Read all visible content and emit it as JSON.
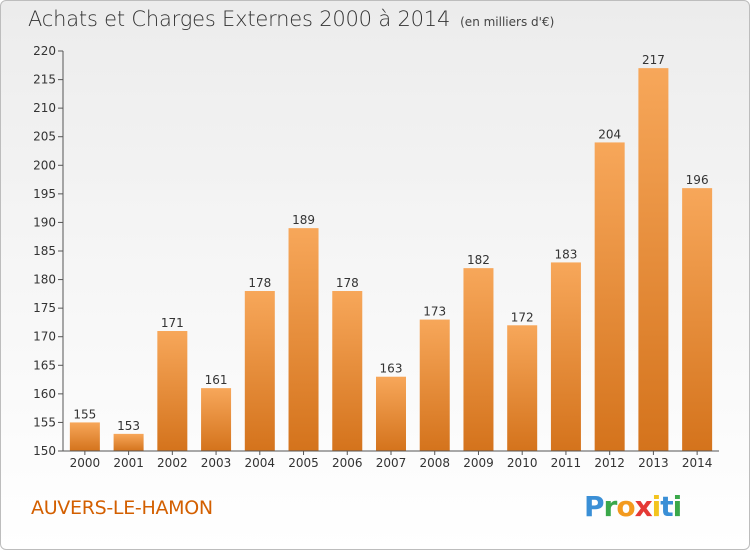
{
  "title": "Achats et Charges Externes 2000 à 2014",
  "unit": "(en milliers d'€)",
  "commune": "AUVERS-LE-HAMON",
  "logo": "Proxiti",
  "colors": {
    "bar_top": "#f7a75a",
    "bar_bottom": "#d4731c",
    "commune": "#d35f00"
  },
  "chart_data": {
    "type": "bar",
    "title": "Achats et Charges Externes 2000 à 2014",
    "subtitle": "(en milliers d'€)",
    "xlabel": "",
    "ylabel": "",
    "categories": [
      "2000",
      "2001",
      "2002",
      "2003",
      "2004",
      "2005",
      "2006",
      "2007",
      "2008",
      "2009",
      "2010",
      "2011",
      "2012",
      "2013",
      "2014"
    ],
    "values": [
      155,
      153,
      171,
      161,
      178,
      189,
      178,
      163,
      173,
      182,
      172,
      183,
      204,
      217,
      196
    ],
    "ylim": [
      150,
      220
    ],
    "yticks": [
      150,
      155,
      160,
      165,
      170,
      175,
      180,
      185,
      190,
      195,
      200,
      205,
      210,
      215,
      220
    ],
    "grid": false,
    "legend": "none"
  }
}
